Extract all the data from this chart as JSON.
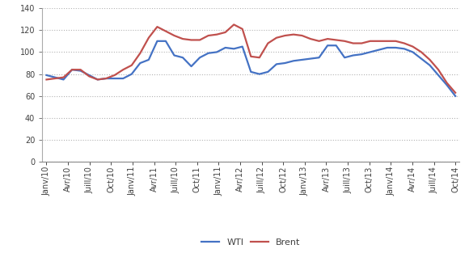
{
  "tick_labels": [
    "Janv/10",
    "Avr/10",
    "Juill/10",
    "Oct/10",
    "Janv/11",
    "Avr/11",
    "Juill/10",
    "Oct/11",
    "Janv/11",
    "Avr/12",
    "Juill/12",
    "Oct/12",
    "Janv/13",
    "Avr/13",
    "Juill/13",
    "Oct/13",
    "Janv/14",
    "Avr/14",
    "Juill/14",
    "Oct/14"
  ],
  "wti_monthly": [
    79,
    77,
    75,
    84,
    83,
    79,
    75,
    76,
    76,
    76,
    80,
    90,
    93,
    110,
    110,
    97,
    95,
    87,
    95,
    99,
    100,
    104,
    103,
    105,
    82,
    80,
    82,
    89,
    90,
    92,
    93,
    94,
    95,
    106,
    106,
    95,
    97,
    98,
    100,
    102,
    104,
    104,
    103,
    100,
    94,
    88,
    79,
    70,
    60
  ],
  "brent_monthly": [
    75,
    76,
    77,
    84,
    84,
    78,
    75,
    76,
    79,
    84,
    88,
    99,
    113,
    123,
    119,
    115,
    112,
    111,
    111,
    115,
    116,
    118,
    125,
    121,
    96,
    95,
    108,
    113,
    115,
    116,
    115,
    112,
    110,
    112,
    111,
    110,
    108,
    108,
    110,
    110,
    110,
    110,
    108,
    105,
    100,
    93,
    84,
    72,
    63
  ],
  "wti_color": "#4472C4",
  "brent_color": "#C0504D",
  "ylim": [
    0,
    140
  ],
  "yticks": [
    0,
    20,
    40,
    60,
    80,
    100,
    120,
    140
  ],
  "grid_color": "#AAAAAA",
  "background_color": "#FFFFFF",
  "legend_wti": "WTI",
  "legend_brent": "Brent",
  "tick_fontsize": 7,
  "legend_fontsize": 8,
  "linewidth": 1.6
}
